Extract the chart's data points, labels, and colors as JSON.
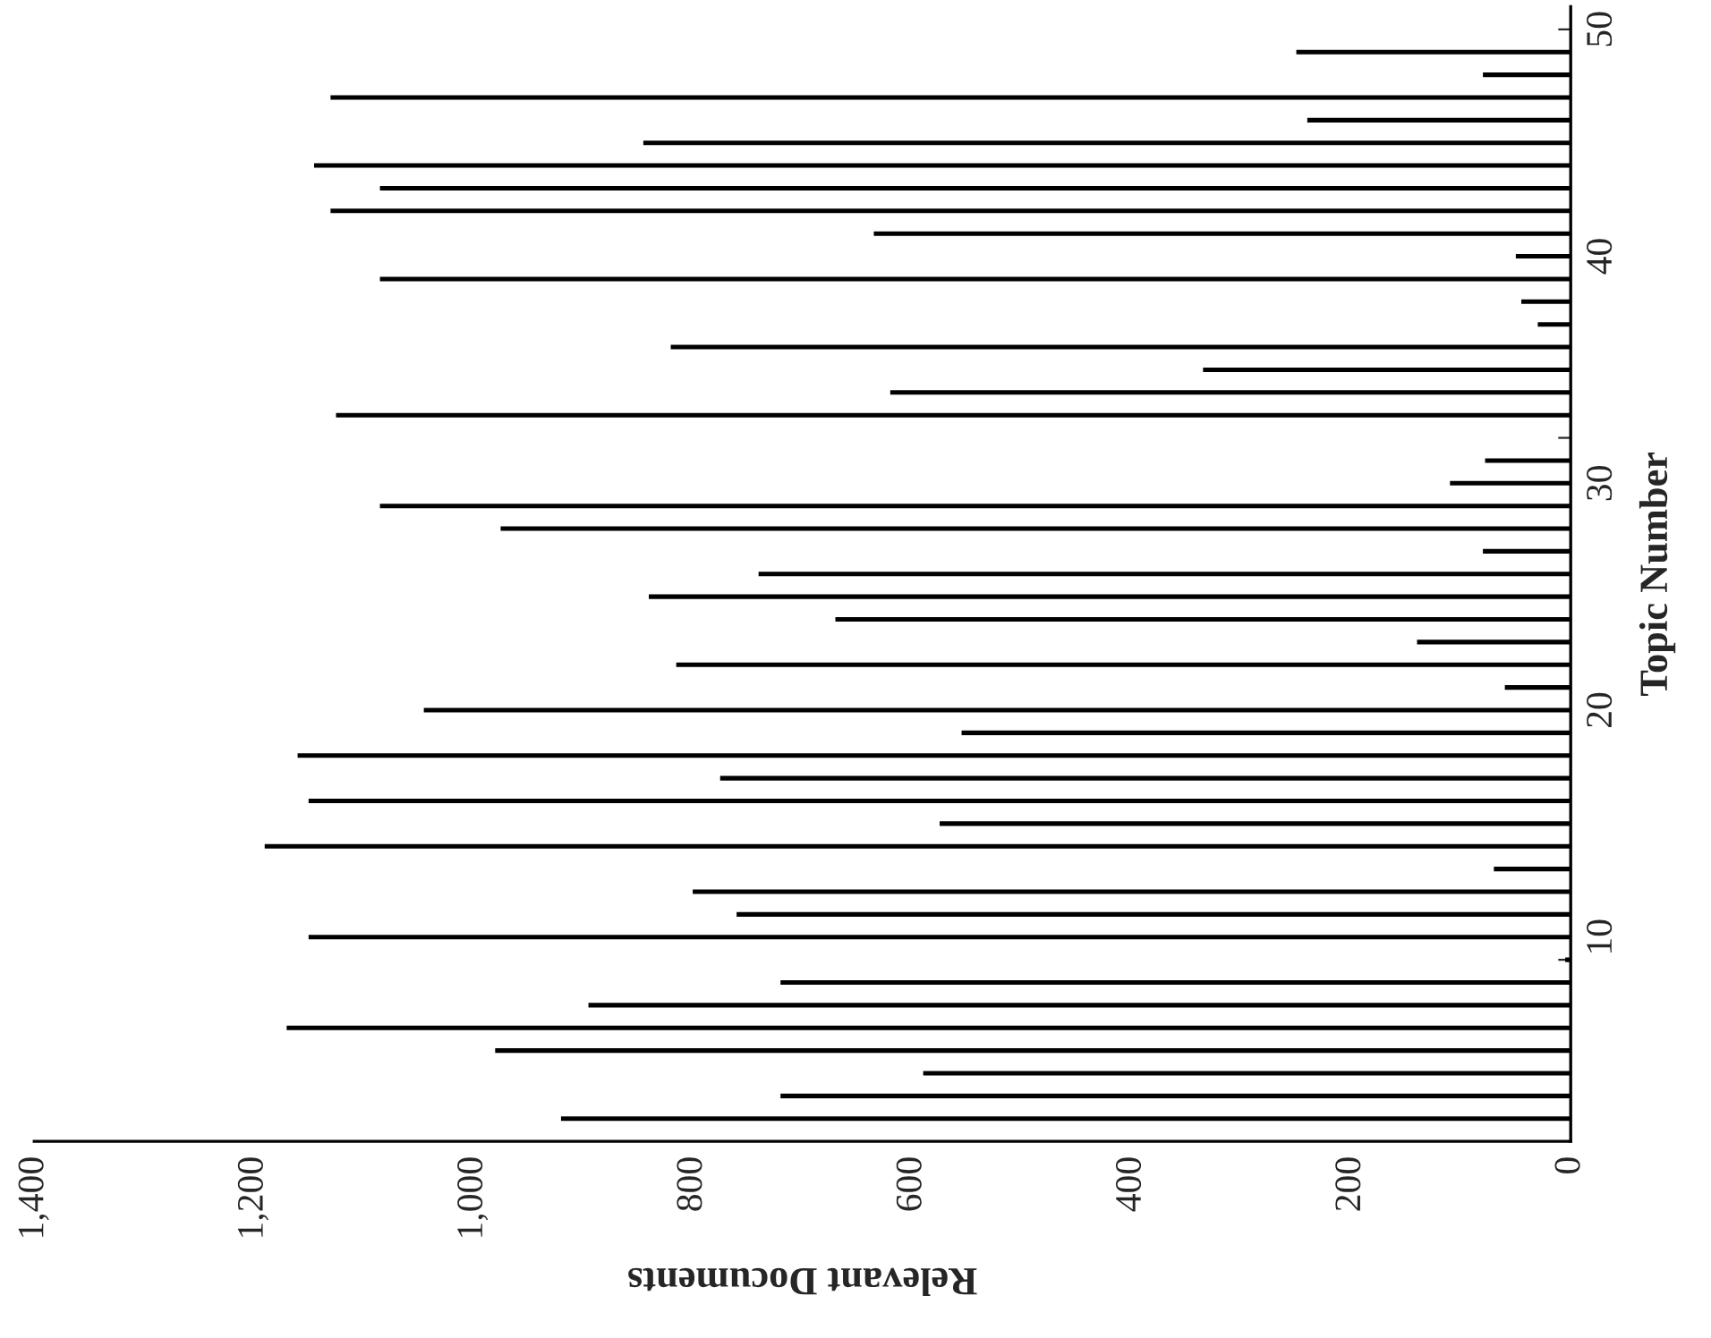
{
  "chart_data": {
    "type": "bar",
    "orientation": "horizontal",
    "xlabel": "Relevant Documents",
    "ylabel": "Topic Number",
    "x": [
      2,
      3,
      4,
      5,
      6,
      7,
      8,
      9,
      10,
      11,
      12,
      13,
      14,
      15,
      16,
      17,
      18,
      19,
      20,
      21,
      22,
      23,
      24,
      25,
      26,
      27,
      28,
      29,
      30,
      31,
      32,
      33,
      34,
      35,
      36,
      37,
      38,
      39,
      40,
      41,
      42,
      43,
      44,
      45,
      46,
      47,
      48,
      49
    ],
    "values": [
      920,
      720,
      590,
      980,
      1170,
      895,
      720,
      5,
      1150,
      760,
      800,
      70,
      1190,
      575,
      1150,
      775,
      1160,
      555,
      1045,
      60,
      815,
      140,
      670,
      840,
      740,
      80,
      975,
      1085,
      110,
      78,
      null,
      1125,
      620,
      335,
      820,
      30,
      45,
      1085,
      50,
      635,
      1130,
      1085,
      1145,
      845,
      240,
      1130,
      80,
      250
    ],
    "color": "#000000",
    "xlim": [
      1400,
      0
    ],
    "xticks": [
      {
        "value": 1400,
        "label": "1,400"
      },
      {
        "value": 1200,
        "label": "1,200"
      },
      {
        "value": 1000,
        "label": "1,000"
      },
      800,
      600,
      400,
      200,
      0
    ],
    "ylim": [
      1,
      51
    ],
    "yticks": [
      {
        "value": 2,
        "label": null
      },
      {
        "value": 3,
        "label": null
      },
      {
        "value": 4,
        "label": null
      },
      {
        "value": 5,
        "label": null
      },
      {
        "value": 6,
        "label": null
      },
      {
        "value": 7,
        "label": null
      },
      {
        "value": 8,
        "label": null
      },
      {
        "value": 9,
        "label": null
      },
      10,
      {
        "value": 11,
        "label": null
      },
      {
        "value": 12,
        "label": null
      },
      {
        "value": 13,
        "label": null
      },
      {
        "value": 14,
        "label": null
      },
      {
        "value": 15,
        "label": null
      },
      {
        "value": 16,
        "label": null
      },
      {
        "value": 17,
        "label": null
      },
      {
        "value": 18,
        "label": null
      },
      {
        "value": 19,
        "label": null
      },
      20,
      {
        "value": 21,
        "label": null
      },
      {
        "value": 22,
        "label": null
      },
      {
        "value": 23,
        "label": null
      },
      {
        "value": 24,
        "label": null
      },
      {
        "value": 25,
        "label": null
      },
      {
        "value": 26,
        "label": null
      },
      {
        "value": 27,
        "label": null
      },
      {
        "value": 28,
        "label": null
      },
      {
        "value": 29,
        "label": null
      },
      30,
      {
        "value": 31,
        "label": null
      },
      {
        "value": 32,
        "label": null
      },
      {
        "value": 33,
        "label": null
      },
      {
        "value": 34,
        "label": null
      },
      {
        "value": 35,
        "label": null
      },
      {
        "value": 36,
        "label": null
      },
      {
        "value": 37,
        "label": null
      },
      {
        "value": 38,
        "label": null
      },
      {
        "value": 39,
        "label": null
      },
      40,
      {
        "value": 41,
        "label": null
      },
      {
        "value": 42,
        "label": null
      },
      {
        "value": 43,
        "label": null
      },
      {
        "value": 44,
        "label": null
      },
      {
        "value": 45,
        "label": null
      },
      {
        "value": 46,
        "label": null
      },
      {
        "value": 47,
        "label": null
      },
      {
        "value": 48,
        "label": null
      },
      {
        "value": 49,
        "label": null
      },
      50
    ]
  }
}
